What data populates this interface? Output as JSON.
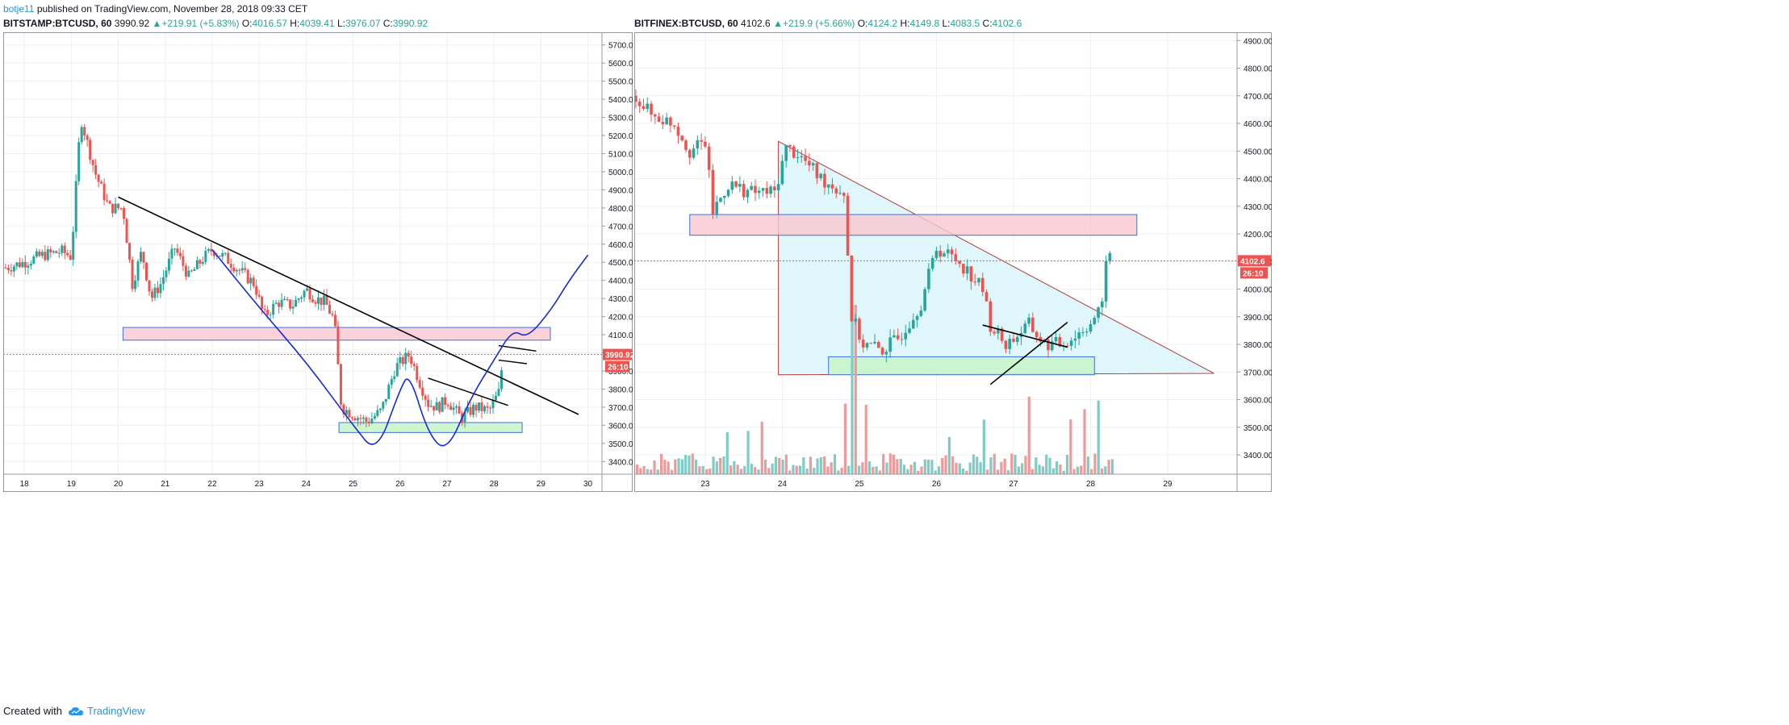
{
  "header": {
    "user": "botje11",
    "published": "published on TradingView.com, November 28, 2018 09:33 CET"
  },
  "left": {
    "symbol": "BITSTAMP:BTCUSD, 60",
    "last": "3990.92",
    "change": "+219.91 (+5.83%)",
    "o_label": "O:",
    "o": "4016.57",
    "h_label": "H:",
    "h": "4039.41",
    "l_label": "L:",
    "l": "3976.07",
    "c_label": "C:",
    "c": "3990.92",
    "price_tag": "3990.92",
    "countdown": "26:10"
  },
  "right": {
    "symbol": "BITFINEX:BTCUSD, 60",
    "last": "4102.6",
    "change": "+219.9 (+5.66%)",
    "o_label": "O:",
    "o": "4124.2",
    "h_label": "H:",
    "h": "4149.8",
    "l_label": "L:",
    "l": "4083.5",
    "c_label": "C:",
    "c": "4102.6",
    "price_tag": "4102.6",
    "countdown": "26:10"
  },
  "footer": {
    "created": "Created with",
    "brand": "TradingView"
  },
  "colors": {
    "up": "#26a69a",
    "down": "#ef5350",
    "grid": "#eef0f3",
    "border": "#9598a1",
    "pink_zone": "#f8c8cf",
    "green_zone": "#c8f5c8",
    "triangle_fill": "#dff6fa"
  },
  "chart_data": [
    {
      "type": "candlestick",
      "symbol": "BITSTAMP:BTCUSD",
      "interval": "60",
      "x_ticks": [
        "18",
        "19",
        "20",
        "21",
        "22",
        "23",
        "24",
        "25",
        "26",
        "27",
        "28",
        "29",
        "30"
      ],
      "y_ticks": [
        "5700.00",
        "5600.00",
        "5500.00",
        "5400.00",
        "5300.00",
        "5200.00",
        "5100.00",
        "5000.00",
        "4900.00",
        "4800.00",
        "4700.00",
        "4600.00",
        "4500.00",
        "4400.00",
        "4300.00",
        "4200.00",
        "4100.00",
        "4000.00",
        "3900.00",
        "3800.00",
        "3700.00",
        "3600.00",
        "3500.00",
        "3400.00"
      ],
      "ylim": [
        3330,
        5770
      ],
      "xlim": [
        17.55,
        30.3
      ],
      "last_price": 3990.92,
      "path": [
        [
          17.6,
          4470
        ],
        [
          18.0,
          4500
        ],
        [
          18.4,
          4540
        ],
        [
          18.8,
          4560
        ],
        [
          19.0,
          4530
        ],
        [
          19.2,
          5300
        ],
        [
          19.5,
          5000
        ],
        [
          19.8,
          4800
        ],
        [
          20.1,
          4800
        ],
        [
          20.3,
          4380
        ],
        [
          20.5,
          4560
        ],
        [
          20.7,
          4300
        ],
        [
          20.9,
          4380
        ],
        [
          21.2,
          4580
        ],
        [
          21.5,
          4420
        ],
        [
          21.8,
          4520
        ],
        [
          22.0,
          4570
        ],
        [
          22.3,
          4520
        ],
        [
          22.6,
          4450
        ],
        [
          22.9,
          4380
        ],
        [
          23.1,
          4200
        ],
        [
          23.4,
          4280
        ],
        [
          23.7,
          4260
        ],
        [
          24.0,
          4350
        ],
        [
          24.2,
          4300
        ],
        [
          24.4,
          4280
        ],
        [
          24.6,
          4180
        ],
        [
          24.75,
          3700
        ],
        [
          25.0,
          3660
        ],
        [
          25.3,
          3620
        ],
        [
          25.6,
          3680
        ],
        [
          25.9,
          3920
        ],
        [
          26.2,
          3990
        ],
        [
          26.4,
          3850
        ],
        [
          26.6,
          3720
        ],
        [
          26.8,
          3700
        ],
        [
          27.0,
          3740
        ],
        [
          27.3,
          3640
        ],
        [
          27.6,
          3700
        ],
        [
          27.9,
          3680
        ],
        [
          28.1,
          3780
        ],
        [
          28.2,
          3990
        ]
      ],
      "annotations": {
        "pink_zone": [
          4070,
          4140
        ],
        "green_zone": [
          3560,
          3615
        ],
        "descending_line": [
          [
            20.0,
            4860
          ],
          [
            29.8,
            3660
          ]
        ],
        "small_line": [
          [
            26.6,
            3860
          ],
          [
            28.3,
            3710
          ]
        ],
        "flag_lines": [
          [
            [
              28.1,
              4040
            ],
            [
              28.9,
              4010
            ]
          ],
          [
            [
              28.1,
              3960
            ],
            [
              28.7,
              3940
            ]
          ]
        ],
        "projection_curve": [
          [
            22.0,
            4570
          ],
          [
            23.0,
            4250
          ],
          [
            24.0,
            3950
          ],
          [
            25.0,
            3600
          ],
          [
            25.5,
            3440
          ],
          [
            26.0,
            3800
          ],
          [
            26.2,
            3890
          ],
          [
            26.6,
            3550
          ],
          [
            27.0,
            3450
          ],
          [
            27.5,
            3750
          ],
          [
            28.0,
            3960
          ],
          [
            28.4,
            4130
          ],
          [
            28.7,
            4080
          ],
          [
            29.2,
            4230
          ],
          [
            29.6,
            4400
          ],
          [
            30.0,
            4540
          ]
        ]
      }
    },
    {
      "type": "candlestick",
      "symbol": "BITFINEX:BTCUSD",
      "interval": "60",
      "x_ticks": [
        "23",
        "24",
        "25",
        "26",
        "27",
        "28",
        "29"
      ],
      "y_ticks": [
        "4900.00",
        "4800.00",
        "4700.00",
        "4600.00",
        "4500.00",
        "4400.00",
        "4300.00",
        "4200.00",
        "4100.00",
        "4000.00",
        "3900.00",
        "3800.00",
        "3700.00",
        "3600.00",
        "3500.00",
        "3400.00"
      ],
      "ylim": [
        3330,
        4930
      ],
      "xlim": [
        22.08,
        29.9
      ],
      "last_price": 4102.6,
      "path": [
        [
          22.1,
          4700
        ],
        [
          22.3,
          4630
        ],
        [
          22.6,
          4600
        ],
        [
          22.8,
          4500
        ],
        [
          23.0,
          4530
        ],
        [
          23.1,
          4280
        ],
        [
          23.3,
          4380
        ],
        [
          23.6,
          4350
        ],
        [
          23.9,
          4350
        ],
        [
          24.05,
          4510
        ],
        [
          24.2,
          4490
        ],
        [
          24.5,
          4400
        ],
        [
          24.8,
          4350
        ],
        [
          24.9,
          3900
        ],
        [
          25.05,
          3800
        ],
        [
          25.3,
          3780
        ],
        [
          25.5,
          3820
        ],
        [
          25.8,
          3950
        ],
        [
          26.0,
          4150
        ],
        [
          26.3,
          4100
        ],
        [
          26.6,
          4000
        ],
        [
          26.7,
          3870
        ],
        [
          26.9,
          3800
        ],
        [
          27.2,
          3870
        ],
        [
          27.4,
          3800
        ],
        [
          27.6,
          3800
        ],
        [
          27.8,
          3830
        ],
        [
          28.0,
          3880
        ],
        [
          28.15,
          3930
        ],
        [
          28.2,
          4120
        ],
        [
          28.3,
          4100
        ]
      ],
      "annotations": {
        "pink_zone": [
          4195,
          4270
        ],
        "green_zone": [
          3690,
          3755
        ],
        "triangle": [
          [
            23.95,
            4535
          ],
          [
            23.95,
            3690
          ],
          [
            29.6,
            3695
          ]
        ],
        "hline_price": 4102.6,
        "pennant_lines": [
          [
            [
              26.6,
              3870
            ],
            [
              27.7,
              3790
            ]
          ],
          [
            [
              26.7,
              3655
            ],
            [
              27.7,
              3880
            ]
          ]
        ]
      }
    }
  ]
}
